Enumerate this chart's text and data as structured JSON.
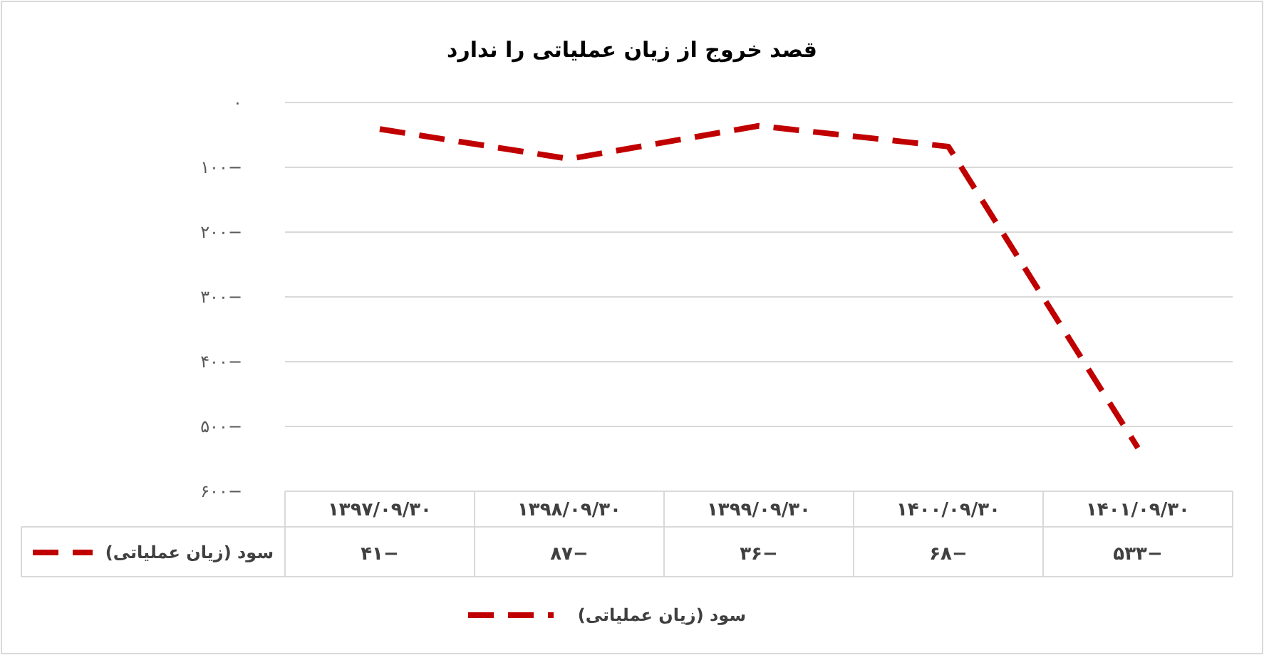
{
  "chart_data": {
    "type": "line",
    "title": "قصد خروج از زیان عملیاتی را ندارد",
    "categories": [
      "۱۳۹۷/۰۹/۳۰",
      "۱۳۹۸/۰۹/۳۰",
      "۱۳۹۹/۰۹/۳۰",
      "۱۴۰۰/۰۹/۳۰",
      "۱۴۰۱/۰۹/۳۰"
    ],
    "series": [
      {
        "name": "سود (زیان عملیاتی)",
        "color": "#c00000",
        "values": [
          -41,
          -87,
          -36,
          -68,
          -533
        ],
        "value_labels": [
          "−۴۱",
          "−۸۷",
          "−۳۶",
          "−۶۸",
          "−۵۳۳"
        ]
      }
    ],
    "ylim": [
      -600,
      0
    ],
    "yticks": [
      {
        "value": 0,
        "label": "۰"
      },
      {
        "value": -100,
        "label": "−۱۰۰"
      },
      {
        "value": -200,
        "label": "−۲۰۰"
      },
      {
        "value": -300,
        "label": "−۳۰۰"
      },
      {
        "value": -400,
        "label": "−۴۰۰"
      },
      {
        "value": -500,
        "label": "−۵۰۰"
      },
      {
        "value": -600,
        "label": "−۶۰۰"
      }
    ],
    "grid": "y",
    "legend": "bottom",
    "line_style": "dashed"
  }
}
